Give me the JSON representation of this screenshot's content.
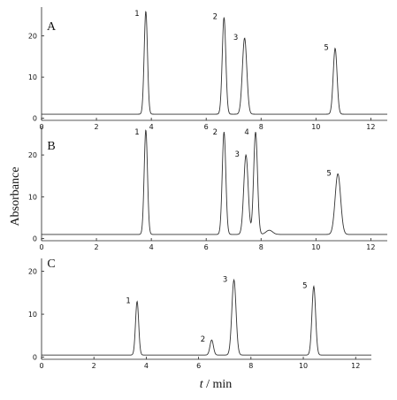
{
  "chart_data": [
    {
      "type": "line",
      "panel_label": "A",
      "xlim": [
        0,
        12.6
      ],
      "ylim": [
        -0.5,
        27
      ],
      "x_ticks": [
        0,
        2,
        4,
        6,
        8,
        10,
        12
      ],
      "y_ticks": [
        0,
        10,
        20
      ],
      "baseline": 1,
      "peaks": [
        {
          "label": "1",
          "x": 3.8,
          "y": 26.0
        },
        {
          "label": "2",
          "x": 6.65,
          "y": 24.5
        },
        {
          "label": "3",
          "x": 7.4,
          "y": 19.5
        },
        {
          "label": "5",
          "x": 10.7,
          "y": 17.0
        }
      ]
    },
    {
      "type": "line",
      "panel_label": "B",
      "xlim": [
        0,
        12.6
      ],
      "ylim": [
        -0.5,
        27
      ],
      "x_ticks": [
        0,
        2,
        4,
        6,
        8,
        10,
        12
      ],
      "y_ticks": [
        0,
        10,
        20
      ],
      "baseline": 1,
      "peaks": [
        {
          "label": "1",
          "x": 3.8,
          "y": 26.0
        },
        {
          "label": "2",
          "x": 6.65,
          "y": 25.5
        },
        {
          "label": "3",
          "x": 7.45,
          "y": 20.0
        },
        {
          "label": "4",
          "x": 7.8,
          "y": 25.5
        },
        {
          "label": "",
          "x": 8.3,
          "y": 2.0
        },
        {
          "label": "5",
          "x": 10.8,
          "y": 15.5
        }
      ]
    },
    {
      "type": "line",
      "panel_label": "C",
      "xlim": [
        0,
        12.6
      ],
      "ylim": [
        -0.5,
        23
      ],
      "x_ticks": [
        0,
        2,
        4,
        6,
        8,
        10,
        12
      ],
      "y_ticks": [
        0,
        10,
        20
      ],
      "baseline": 0.5,
      "peaks": [
        {
          "label": "1",
          "x": 3.65,
          "y": 13.0
        },
        {
          "label": "2",
          "x": 6.5,
          "y": 4.0
        },
        {
          "label": "3",
          "x": 7.35,
          "y": 18.0
        },
        {
          "label": "5",
          "x": 10.4,
          "y": 16.5
        }
      ]
    }
  ],
  "ylabel": "Absorbance",
  "xlabel_italic": "t",
  "xlabel_rest": " / min"
}
